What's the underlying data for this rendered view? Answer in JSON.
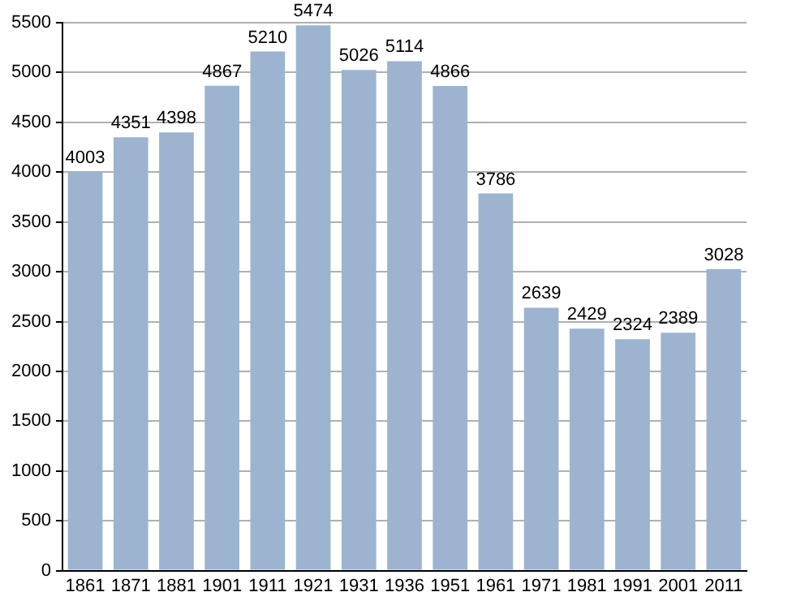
{
  "chart_data": {
    "type": "bar",
    "categories": [
      "1861",
      "1871",
      "1881",
      "1901",
      "1911",
      "1921",
      "1931",
      "1936",
      "1951",
      "1961",
      "1971",
      "1981",
      "1991",
      "2001",
      "2011"
    ],
    "values": [
      4003,
      4351,
      4398,
      4867,
      5210,
      5474,
      5026,
      5114,
      4866,
      3786,
      2639,
      2429,
      2324,
      2389,
      3028
    ],
    "color": "#9cb4d0",
    "ylim": [
      0,
      5500
    ],
    "yticks": [
      0,
      500,
      1000,
      1500,
      2000,
      2500,
      3000,
      3500,
      4000,
      4500,
      5000,
      5500
    ],
    "grid": "y",
    "data_labels": true,
    "legend": false
  }
}
